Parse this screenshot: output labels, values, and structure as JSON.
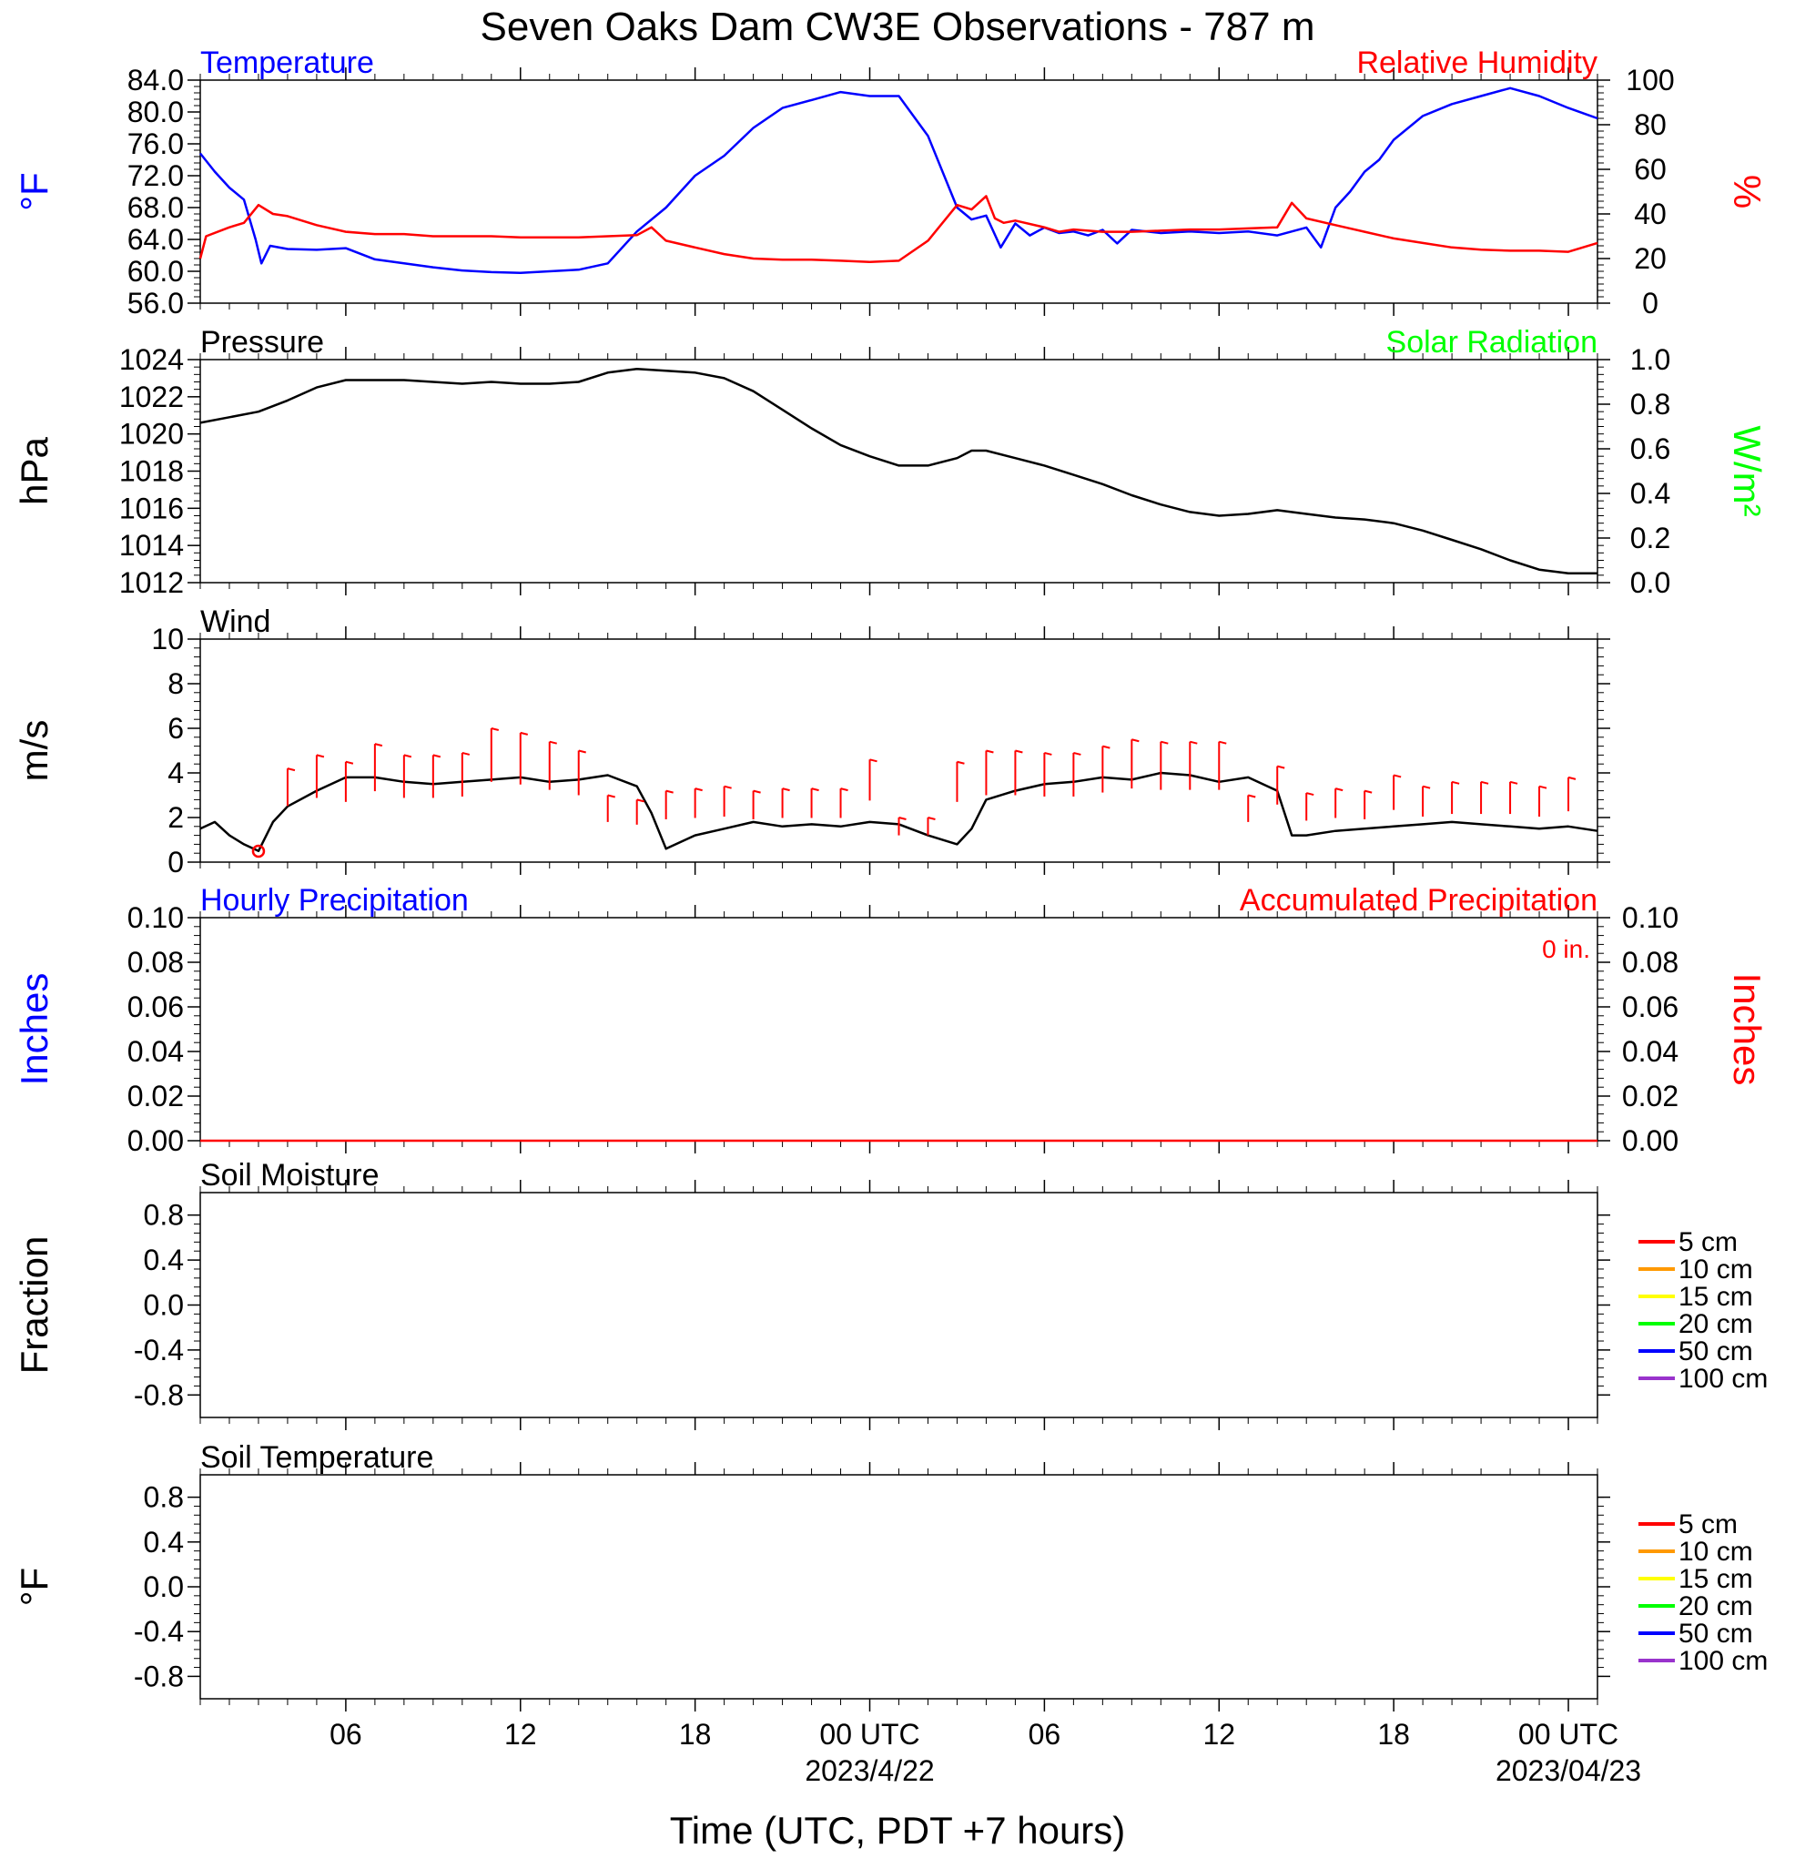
{
  "page_title": "Seven Oaks Dam CW3E Observations - 787 m",
  "xaxis": {
    "title": "Time (UTC, PDT +7 hours)",
    "start_utc": "2023-04-21 01:00",
    "end_utc": "2023-04-23 01:00",
    "tick_labels": [
      "06",
      "12",
      "18",
      "00 UTC",
      "06",
      "12",
      "18",
      "00 UTC"
    ],
    "tick_hours": [
      5,
      11,
      17,
      23,
      29,
      35,
      41,
      47
    ],
    "date_labels": [
      {
        "hour": 23,
        "text": "2023/4/22"
      },
      {
        "hour": 47,
        "text": "2023/04/23"
      }
    ]
  },
  "colors": {
    "temperature": "#0000ff",
    "humidity": "#ff0000",
    "pressure": "#000000",
    "solar": "#00ff00",
    "wind": "#000000",
    "barb": "#ff0000",
    "precip_hourly": "#0000ff",
    "precip_accum": "#ff0000"
  },
  "legend_items": [
    {
      "label": "5 cm",
      "color": "#ff0000"
    },
    {
      "label": "10 cm",
      "color": "#ff9900"
    },
    {
      "label": "15 cm",
      "color": "#ffff00"
    },
    {
      "label": "20 cm",
      "color": "#00ff00"
    },
    {
      "label": "50 cm",
      "color": "#0000ff"
    },
    {
      "label": "100 cm",
      "color": "#9933cc"
    }
  ],
  "chart_data": [
    {
      "id": "temp_rh",
      "type": "line",
      "title_left": "Temperature",
      "title_right": "Relative Humidity",
      "ylabel_left": "°F",
      "ylabel_right": "%",
      "ylim_left": [
        56,
        84
      ],
      "ylim_right": [
        0,
        100
      ],
      "yticks_left": [
        "84.0",
        "80.0",
        "76.0",
        "72.0",
        "68.0",
        "64.0",
        "60.0",
        "56.0"
      ],
      "yticks_right": [
        "100",
        "80",
        "60",
        "40",
        "20",
        "0"
      ],
      "series": [
        {
          "name": "Temperature",
          "axis": "left",
          "x": [
            0,
            0.5,
            1.0,
            1.5,
            1.9,
            2.1,
            2.4,
            3,
            4,
            5,
            6,
            7,
            8,
            9,
            10,
            11,
            12,
            13,
            14,
            15,
            16,
            17,
            18,
            19,
            20,
            21,
            22,
            23,
            24,
            25,
            26,
            26.5,
            27,
            27.5,
            28,
            28.5,
            29,
            29.5,
            30,
            30.5,
            31,
            31.5,
            32,
            33,
            34,
            35,
            36,
            37,
            38,
            38.5,
            39,
            39.5,
            40,
            40.5,
            41,
            42,
            43,
            44,
            45,
            46,
            47,
            48
          ],
          "y": [
            74.8,
            72.5,
            70.5,
            69,
            64,
            61,
            63.2,
            62.8,
            62.7,
            62.9,
            61.5,
            61,
            60.5,
            60.1,
            59.9,
            59.8,
            60,
            60.2,
            61,
            65,
            68,
            72,
            74.5,
            78,
            80.5,
            81.5,
            82.5,
            82,
            82,
            77,
            68,
            66.5,
            67,
            63,
            66,
            64.5,
            65.5,
            64.8,
            65,
            64.5,
            65.2,
            63.5,
            65.2,
            64.8,
            65,
            64.8,
            65,
            64.5,
            65.5,
            63,
            68,
            70,
            72.5,
            74,
            76.5,
            79.5,
            81,
            82,
            83,
            82,
            80.5,
            79.2
          ]
        },
        {
          "name": "Relative Humidity",
          "axis": "right",
          "x": [
            0,
            0.2,
            1.0,
            1.5,
            2.0,
            2.5,
            3,
            4,
            5,
            6,
            7,
            8,
            9,
            10,
            11,
            12,
            13,
            14,
            15,
            15.5,
            16,
            17,
            18,
            19,
            20,
            21,
            22,
            23,
            24,
            25,
            26,
            26.5,
            27,
            27.3,
            27.6,
            28,
            29,
            29.5,
            30,
            31,
            32,
            33,
            34,
            35,
            36,
            37,
            37.5,
            38,
            39,
            40,
            41,
            42,
            43,
            44,
            45,
            46,
            47,
            48
          ],
          "y": [
            20,
            30,
            34,
            36,
            44,
            40,
            39,
            35,
            32,
            31,
            31,
            30,
            30,
            30,
            29.5,
            29.5,
            29.5,
            30,
            30.5,
            34,
            28,
            25,
            22,
            20,
            19.5,
            19.5,
            19,
            18.5,
            19,
            28,
            44,
            42,
            48,
            38,
            36,
            37,
            34,
            32,
            33,
            32,
            32,
            32.5,
            33,
            33,
            33.5,
            34,
            45,
            38,
            35,
            32,
            29,
            27,
            25,
            24,
            23.5,
            23.5,
            23,
            27
          ]
        }
      ]
    },
    {
      "id": "pressure",
      "type": "line",
      "title_left": "Pressure",
      "title_right": "Solar Radiation",
      "ylabel_left": "hPa",
      "ylabel_right": "W/m²",
      "ylim_left": [
        1012,
        1024
      ],
      "ylim_right": [
        0,
        1
      ],
      "yticks_left": [
        "1024",
        "1022",
        "1020",
        "1018",
        "1016",
        "1014",
        "1012"
      ],
      "yticks_right": [
        "1.0",
        "0.8",
        "0.6",
        "0.4",
        "0.2",
        "0.0"
      ],
      "series": [
        {
          "name": "Pressure",
          "axis": "left",
          "x": [
            0,
            1,
            2,
            3,
            4,
            5,
            6,
            7,
            8,
            9,
            10,
            11,
            12,
            13,
            14,
            15,
            16,
            17,
            18,
            19,
            20,
            21,
            22,
            23,
            24,
            25,
            26,
            26.5,
            27,
            28,
            29,
            30,
            31,
            32,
            33,
            34,
            35,
            36,
            37,
            38,
            39,
            40,
            41,
            42,
            43,
            44,
            45,
            46,
            47,
            48
          ],
          "y": [
            1020.6,
            1020.9,
            1021.2,
            1021.8,
            1022.5,
            1022.9,
            1022.9,
            1022.9,
            1022.8,
            1022.7,
            1022.8,
            1022.7,
            1022.7,
            1022.8,
            1023.3,
            1023.5,
            1023.4,
            1023.3,
            1023.0,
            1022.3,
            1021.3,
            1020.3,
            1019.4,
            1018.8,
            1018.3,
            1018.3,
            1018.7,
            1019.1,
            1019.1,
            1018.7,
            1018.3,
            1017.8,
            1017.3,
            1016.7,
            1016.2,
            1015.8,
            1015.6,
            1015.7,
            1015.9,
            1015.7,
            1015.5,
            1015.4,
            1015.2,
            1014.8,
            1014.3,
            1013.8,
            1013.2,
            1012.7,
            1012.5,
            1012.5
          ]
        }
      ]
    },
    {
      "id": "wind",
      "type": "line",
      "title_left": "Wind",
      "ylabel_left": "m/s",
      "ylim_left": [
        0,
        10
      ],
      "yticks_left": [
        "10",
        "8",
        "6",
        "4",
        "2",
        "0"
      ],
      "series": [
        {
          "name": "Wind",
          "axis": "left",
          "x": [
            0,
            0.5,
            1,
            1.5,
            2,
            2.5,
            3,
            4,
            5,
            6,
            7,
            8,
            9,
            10,
            11,
            12,
            13,
            14,
            15,
            15.5,
            16,
            17,
            18,
            19,
            20,
            21,
            22,
            23,
            24,
            25,
            26,
            26.5,
            27,
            28,
            29,
            30,
            31,
            32,
            33,
            34,
            35,
            36,
            37,
            37.5,
            38,
            39,
            40,
            41,
            42,
            43,
            44,
            45,
            46,
            47,
            48
          ],
          "y": [
            1.5,
            1.8,
            1.2,
            0.8,
            0.5,
            1.8,
            2.5,
            3.2,
            3.8,
            3.8,
            3.6,
            3.5,
            3.6,
            3.7,
            3.8,
            3.6,
            3.7,
            3.9,
            3.4,
            2.2,
            0.6,
            1.2,
            1.5,
            1.8,
            1.6,
            1.7,
            1.6,
            1.8,
            1.7,
            1.2,
            0.8,
            1.5,
            2.8,
            3.2,
            3.5,
            3.6,
            3.8,
            3.7,
            4.0,
            3.9,
            3.6,
            3.8,
            3.2,
            1.2,
            1.2,
            1.4,
            1.5,
            1.6,
            1.7,
            1.8,
            1.7,
            1.6,
            1.5,
            1.6,
            1.4
          ]
        }
      ],
      "barbs": {
        "x": [
          2,
          3,
          4,
          5,
          6,
          7,
          8,
          9,
          10,
          11,
          12,
          13,
          14,
          15,
          16,
          17,
          18,
          19,
          20,
          21,
          22,
          23,
          24,
          25,
          26,
          27,
          28,
          29,
          30,
          31,
          32,
          33,
          34,
          35,
          36,
          37,
          38,
          39,
          40,
          41,
          42,
          43,
          44,
          45,
          46,
          47
        ],
        "speed": [
          0.4,
          4.2,
          4.8,
          4.5,
          5.3,
          4.8,
          4.8,
          4.9,
          6.0,
          5.8,
          5.4,
          5.0,
          3.0,
          2.8,
          3.2,
          3.3,
          3.4,
          3.2,
          3.3,
          3.3,
          3.3,
          4.6,
          2.0,
          2.0,
          4.5,
          5.0,
          5.0,
          4.9,
          4.9,
          5.2,
          5.5,
          5.4,
          5.4,
          5.4,
          3.0,
          4.3,
          3.1,
          3.3,
          3.2,
          3.9,
          3.4,
          3.6,
          3.6,
          3.6,
          3.4,
          3.8
        ]
      }
    },
    {
      "id": "precip",
      "type": "line",
      "title_left": "Hourly Precipitation",
      "title_right": "Accumulated Precipitation",
      "annotation": "0 in.",
      "ylabel_left": "Inches",
      "ylabel_right": "Inches",
      "ylim_left": [
        0,
        0.1
      ],
      "ylim_right": [
        0,
        0.1
      ],
      "yticks_left": [
        "0.10",
        "0.08",
        "0.06",
        "0.04",
        "0.02",
        "0.00"
      ],
      "yticks_right": [
        "0.10",
        "0.08",
        "0.06",
        "0.04",
        "0.02",
        "0.00"
      ],
      "series": [
        {
          "name": "Accumulated Precipitation",
          "axis": "left",
          "x": [
            0,
            48
          ],
          "y": [
            0,
            0
          ]
        }
      ]
    },
    {
      "id": "soil_moisture",
      "type": "line",
      "title_left": "Soil Moisture",
      "ylabel_left": "Fraction",
      "ylim_left": [
        -1,
        1
      ],
      "yticks_left": [
        "0.8",
        "0.4",
        "0.0",
        "-0.4",
        "-0.8"
      ],
      "series": []
    },
    {
      "id": "soil_temp",
      "type": "line",
      "title_left": "Soil Temperature",
      "ylabel_left": "°F",
      "ylim_left": [
        -1,
        1
      ],
      "yticks_left": [
        "0.8",
        "0.4",
        "0.0",
        "-0.4",
        "-0.8"
      ],
      "series": []
    }
  ]
}
